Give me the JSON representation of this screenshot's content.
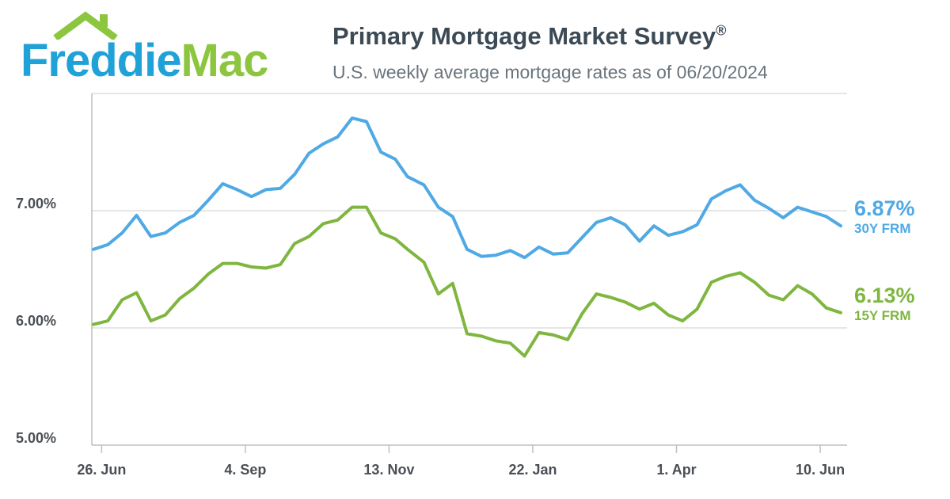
{
  "brand": {
    "logo_part1": "Freddie",
    "logo_part2": "Mac",
    "icon": "house-roof-icon"
  },
  "header": {
    "title": "Primary Mortgage Market Survey",
    "title_mark": "®",
    "subtitle": "U.S. weekly average mortgage rates as of 06/20/2024"
  },
  "colors": {
    "series_30y": "#4fa9e4",
    "series_15y": "#7fb63f",
    "logo_blue": "#1fa2d8",
    "logo_green": "#8cc63f",
    "gridline": "#dedede",
    "axis": "#bfbfbf"
  },
  "chart_data": {
    "type": "line",
    "title": "Primary Mortgage Market Survey",
    "subtitle": "U.S. weekly average mortgage rates as of 06/20/2024",
    "xlabel": "",
    "ylabel": "",
    "x_start": "2023-06-22",
    "x_interval": "weekly",
    "x": [
      "2023-06-22",
      "2023-06-29",
      "2023-07-06",
      "2023-07-13",
      "2023-07-20",
      "2023-07-27",
      "2023-08-03",
      "2023-08-10",
      "2023-08-17",
      "2023-08-24",
      "2023-08-31",
      "2023-09-07",
      "2023-09-14",
      "2023-09-21",
      "2023-09-28",
      "2023-10-05",
      "2023-10-12",
      "2023-10-19",
      "2023-10-26",
      "2023-11-02",
      "2023-11-09",
      "2023-11-16",
      "2023-11-22",
      "2023-11-30",
      "2023-12-07",
      "2023-12-14",
      "2023-12-21",
      "2023-12-28",
      "2024-01-04",
      "2024-01-11",
      "2024-01-18",
      "2024-01-25",
      "2024-02-01",
      "2024-02-08",
      "2024-02-15",
      "2024-02-22",
      "2024-02-29",
      "2024-03-07",
      "2024-03-14",
      "2024-03-21",
      "2024-03-28",
      "2024-04-04",
      "2024-04-11",
      "2024-04-18",
      "2024-04-25",
      "2024-05-02",
      "2024-05-09",
      "2024-05-16",
      "2024-05-23",
      "2024-05-30",
      "2024-06-06",
      "2024-06-13",
      "2024-06-20"
    ],
    "x_ticks": [
      {
        "date": "2023-06-26",
        "label": "26. Jun"
      },
      {
        "date": "2023-09-04",
        "label": "4. Sep"
      },
      {
        "date": "2023-11-13",
        "label": "13. Nov"
      },
      {
        "date": "2024-01-22",
        "label": "22. Jan"
      },
      {
        "date": "2024-04-01",
        "label": "1. Apr"
      },
      {
        "date": "2024-06-10",
        "label": "10. Jun"
      }
    ],
    "y_ticks": [
      {
        "value": 5.0,
        "label": "5.00%"
      },
      {
        "value": 6.0,
        "label": "6.00%"
      },
      {
        "value": 7.0,
        "label": "7.00%"
      }
    ],
    "ylim": [
      5.0,
      8.0
    ],
    "grid": true,
    "series": [
      {
        "name": "30Y FRM",
        "end_label": "6.87%",
        "values": [
          6.67,
          6.71,
          6.81,
          6.96,
          6.78,
          6.81,
          6.9,
          6.96,
          7.09,
          7.23,
          7.18,
          7.12,
          7.18,
          7.19,
          7.31,
          7.49,
          7.57,
          7.63,
          7.79,
          7.76,
          7.5,
          7.44,
          7.29,
          7.22,
          7.03,
          6.95,
          6.67,
          6.61,
          6.62,
          6.66,
          6.6,
          6.69,
          6.63,
          6.64,
          6.77,
          6.9,
          6.94,
          6.88,
          6.74,
          6.87,
          6.79,
          6.82,
          6.88,
          7.1,
          7.17,
          7.22,
          7.09,
          7.02,
          6.94,
          7.03,
          6.99,
          6.95,
          6.87
        ]
      },
      {
        "name": "15Y FRM",
        "end_label": "6.13%",
        "values": [
          6.03,
          6.06,
          6.24,
          6.3,
          6.06,
          6.11,
          6.25,
          6.34,
          6.46,
          6.55,
          6.55,
          6.52,
          6.51,
          6.54,
          6.72,
          6.78,
          6.89,
          6.92,
          7.03,
          7.03,
          6.81,
          6.76,
          6.67,
          6.56,
          6.29,
          6.38,
          5.95,
          5.93,
          5.89,
          5.87,
          5.76,
          5.96,
          5.94,
          5.9,
          6.12,
          6.29,
          6.26,
          6.22,
          6.16,
          6.21,
          6.11,
          6.06,
          6.16,
          6.39,
          6.44,
          6.47,
          6.39,
          6.28,
          6.24,
          6.36,
          6.29,
          6.17,
          6.13
        ]
      }
    ],
    "legend": "right-end-labels"
  }
}
